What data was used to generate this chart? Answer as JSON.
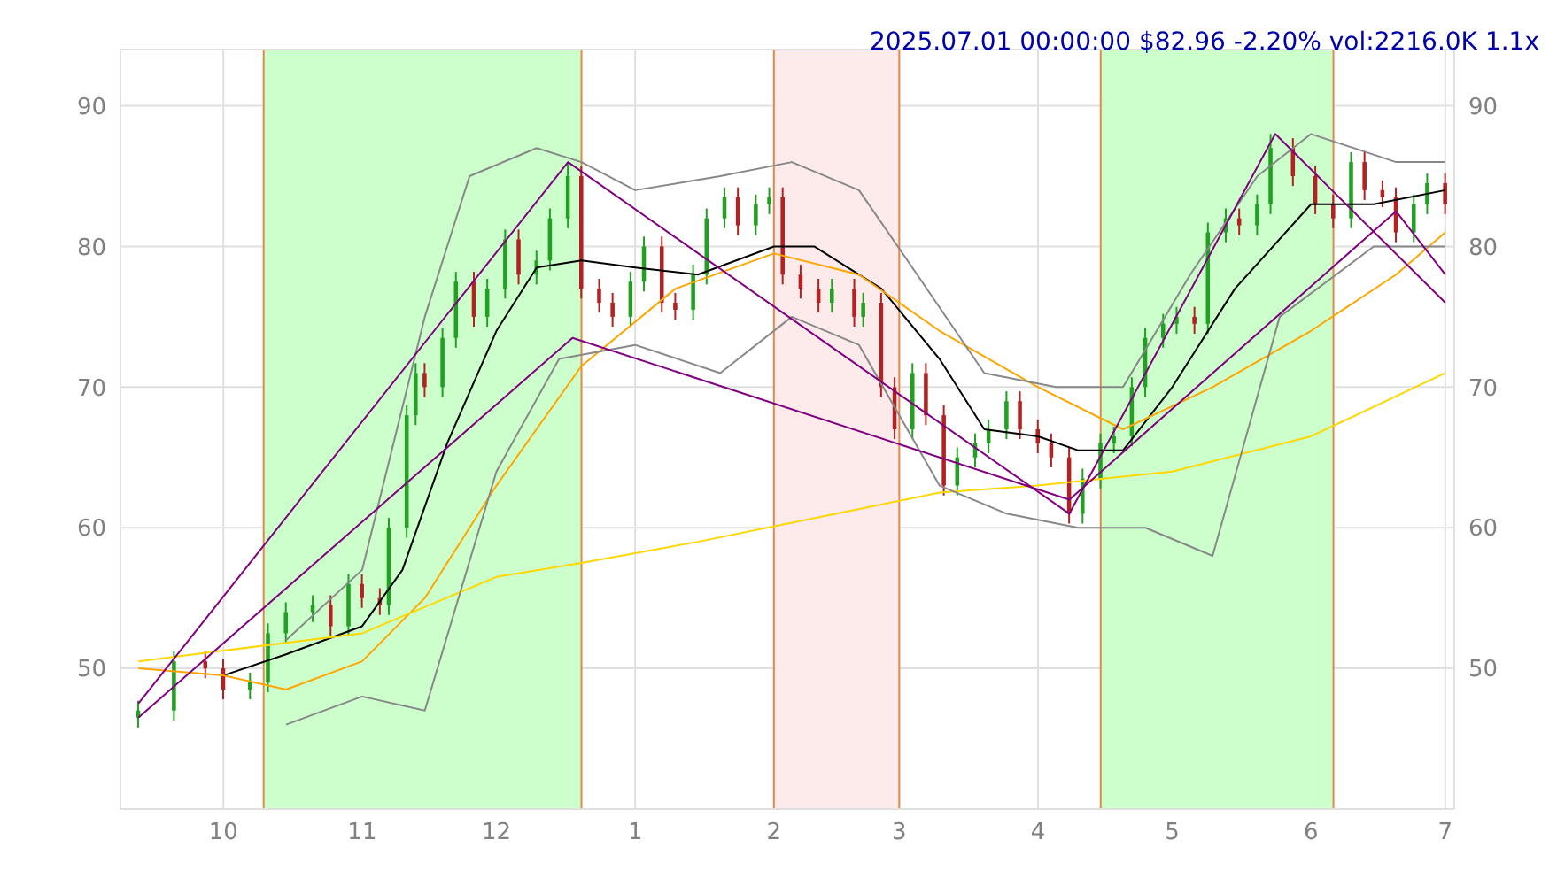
{
  "chart_data": {
    "type": "candlestick",
    "title": "2025.07.01 00:00:00 $82.96 -2.20% vol:2216.0K 1.1x",
    "x": [
      "2024-09-12",
      "2024-09-20",
      "2024-09-27",
      "2024-10-01",
      "2024-10-07",
      "2024-10-11",
      "2024-10-15",
      "2024-10-21",
      "2024-10-25",
      "2024-10-29",
      "2024-11-01",
      "2024-11-05",
      "2024-11-07",
      "2024-11-11",
      "2024-11-13",
      "2024-11-15",
      "2024-11-19",
      "2024-11-22",
      "2024-11-26",
      "2024-11-29",
      "2024-12-03",
      "2024-12-06",
      "2024-12-10",
      "2024-12-13",
      "2024-12-17",
      "2024-12-20",
      "2024-12-24",
      "2024-12-27",
      "2024-12-31",
      "2025-01-03",
      "2025-01-07",
      "2025-01-10",
      "2025-01-14",
      "2025-01-17",
      "2025-01-21",
      "2025-01-24",
      "2025-01-28",
      "2025-01-31",
      "2025-02-03",
      "2025-02-07",
      "2025-02-11",
      "2025-02-14",
      "2025-02-19",
      "2025-02-21",
      "2025-02-25",
      "2025-02-28",
      "2025-03-04",
      "2025-03-07",
      "2025-03-11",
      "2025-03-14",
      "2025-03-18",
      "2025-03-21",
      "2025-03-25",
      "2025-03-28",
      "2025-04-01",
      "2025-04-04",
      "2025-04-08",
      "2025-04-11",
      "2025-04-15",
      "2025-04-18",
      "2025-04-22",
      "2025-04-25",
      "2025-04-29",
      "2025-05-02",
      "2025-05-06",
      "2025-05-09",
      "2025-05-13",
      "2025-05-16",
      "2025-05-20",
      "2025-05-23",
      "2025-05-28",
      "2025-06-02",
      "2025-06-06",
      "2025-06-10",
      "2025-06-13",
      "2025-06-17",
      "2025-06-20",
      "2025-06-24",
      "2025-06-27",
      "2025-07-01"
    ],
    "ohlc": [
      [
        46.5,
        47.7,
        45.8,
        47
      ],
      [
        47,
        51.2,
        46.3,
        50.5
      ],
      [
        50.5,
        51.2,
        49.3,
        50
      ],
      [
        50,
        50.7,
        47.8,
        48.5
      ],
      [
        48.5,
        49.7,
        47.8,
        49
      ],
      [
        49,
        53.2,
        48.3,
        52.5
      ],
      [
        52.5,
        54.7,
        51.8,
        54
      ],
      [
        54,
        55.2,
        53.3,
        54.5
      ],
      [
        54.5,
        55.2,
        52.3,
        53
      ],
      [
        53,
        56.7,
        52.3,
        56
      ],
      [
        56,
        56.7,
        54.3,
        55
      ],
      [
        55,
        55.7,
        53.8,
        54.5
      ],
      [
        54.5,
        60.7,
        53.8,
        60
      ],
      [
        60,
        68.7,
        59.3,
        68
      ],
      [
        68,
        71.7,
        67.3,
        71
      ],
      [
        71,
        71.7,
        69.3,
        70
      ],
      [
        70,
        74.2,
        69.3,
        73.5
      ],
      [
        73.5,
        78.2,
        72.8,
        77.5
      ],
      [
        77.5,
        78.2,
        74.3,
        75
      ],
      [
        75,
        77.7,
        74.3,
        77
      ],
      [
        77,
        81.2,
        76.3,
        80.5
      ],
      [
        80.5,
        81.2,
        77.3,
        78
      ],
      [
        78,
        79.7,
        77.3,
        79
      ],
      [
        79,
        82.7,
        78.3,
        82
      ],
      [
        82,
        86,
        81.3,
        85
      ],
      [
        85,
        85.7,
        76.3,
        77
      ],
      [
        77,
        77.7,
        75.3,
        76
      ],
      [
        76,
        76.7,
        74.3,
        75
      ],
      [
        75,
        78.2,
        74.3,
        77.5
      ],
      [
        77.5,
        80.7,
        76.8,
        80
      ],
      [
        80,
        80.7,
        75.3,
        76
      ],
      [
        76,
        76.7,
        74.8,
        75.5
      ],
      [
        75.5,
        78.7,
        74.8,
        78
      ],
      [
        78,
        82.7,
        77.3,
        82
      ],
      [
        82,
        84.2,
        81.3,
        83.5
      ],
      [
        83.5,
        84.2,
        80.8,
        81.5
      ],
      [
        81.5,
        83.7,
        80.8,
        83
      ],
      [
        83,
        84.2,
        82.3,
        83.5
      ],
      [
        83.5,
        84.2,
        77.3,
        78
      ],
      [
        78,
        78.7,
        76.3,
        77
      ],
      [
        77,
        77.7,
        75.3,
        76
      ],
      [
        76,
        77.7,
        75.3,
        77
      ],
      [
        77,
        77.7,
        74.3,
        75
      ],
      [
        75,
        76.7,
        74.3,
        76
      ],
      [
        76,
        76.7,
        69.3,
        70
      ],
      [
        70,
        70.7,
        66.3,
        67
      ],
      [
        67,
        71.7,
        66.3,
        71
      ],
      [
        71,
        71.7,
        67.3,
        68
      ],
      [
        68,
        68.7,
        62.3,
        63
      ],
      [
        63,
        65.7,
        62.3,
        65
      ],
      [
        65,
        66.7,
        64.3,
        66
      ],
      [
        66,
        67.7,
        65.3,
        67
      ],
      [
        67,
        69.7,
        66.3,
        69
      ],
      [
        69,
        69.7,
        66.3,
        67
      ],
      [
        67,
        67.7,
        65.3,
        66
      ],
      [
        66,
        66.7,
        64.3,
        65
      ],
      [
        65,
        65.7,
        60.3,
        61
      ],
      [
        61,
        64.2,
        60.3,
        63.5
      ],
      [
        63.5,
        66.7,
        62.8,
        66
      ],
      [
        66,
        67.2,
        65.3,
        66.5
      ],
      [
        66.5,
        70.7,
        65.8,
        70
      ],
      [
        70,
        74.2,
        69.3,
        73.5
      ],
      [
        73.5,
        75.2,
        72.8,
        74.5
      ],
      [
        74.5,
        75.7,
        73.8,
        75
      ],
      [
        75,
        75.7,
        73.8,
        74.5
      ],
      [
        74.5,
        81.7,
        73.8,
        81
      ],
      [
        81,
        82.7,
        80.3,
        82
      ],
      [
        82,
        82.7,
        80.8,
        81.5
      ],
      [
        81.5,
        83.7,
        80.8,
        83
      ],
      [
        83,
        88,
        82.3,
        87
      ],
      [
        87,
        87.7,
        84.3,
        85
      ],
      [
        85,
        85.7,
        82.3,
        83
      ],
      [
        83,
        83.7,
        81.3,
        82
      ],
      [
        82,
        86.7,
        81.3,
        86
      ],
      [
        86,
        86.7,
        83.3,
        84
      ],
      [
        84,
        84.7,
        82.8,
        83.5
      ],
      [
        83.5,
        84.2,
        80.3,
        81
      ],
      [
        81,
        83.7,
        80.3,
        83
      ],
      [
        83,
        85.2,
        82.3,
        84.5
      ],
      [
        84.5,
        85.2,
        82.3,
        83
      ]
    ],
    "series": [
      {
        "type": "line",
        "color": "#000000",
        "x": [
          "2024-10-01",
          "2024-10-15",
          "2024-11-01",
          "2024-11-10",
          "2024-11-20",
          "2024-12-01",
          "2024-12-10",
          "2024-12-20",
          "2025-01-01",
          "2025-01-15",
          "2025-02-01",
          "2025-02-10",
          "2025-02-25",
          "2025-03-10",
          "2025-03-20",
          "2025-04-01",
          "2025-04-10",
          "2025-04-20",
          "2025-05-01",
          "2025-05-15",
          "2025-06-01",
          "2025-06-15",
          "2025-07-01"
        ],
        "values": [
          49.5,
          51,
          53,
          57,
          66,
          74,
          78.5,
          79,
          78.5,
          78,
          80,
          80,
          77,
          72,
          67,
          66.5,
          65.5,
          65.5,
          70,
          77,
          83,
          83,
          84
        ]
      },
      {
        "type": "line",
        "color": "#ffa500",
        "x": [
          "2024-09-12",
          "2024-10-01",
          "2024-10-15",
          "2024-11-01",
          "2024-11-15",
          "2024-12-01",
          "2024-12-20",
          "2025-01-10",
          "2025-02-01",
          "2025-02-20",
          "2025-03-10",
          "2025-04-01",
          "2025-04-20",
          "2025-05-10",
          "2025-06-01",
          "2025-06-20",
          "2025-07-01"
        ],
        "values": [
          50,
          49.5,
          48.5,
          50.5,
          55,
          63,
          71.5,
          77,
          79.5,
          78,
          74,
          70,
          67,
          70,
          74,
          78,
          81
        ]
      },
      {
        "type": "line",
        "color": "#ffd700",
        "x": [
          "2024-09-12",
          "2024-11-01",
          "2024-12-01",
          "2024-12-20",
          "2025-01-15",
          "2025-02-15",
          "2025-03-10",
          "2025-04-01",
          "2025-05-01",
          "2025-06-01",
          "2025-07-01"
        ],
        "values": [
          50.5,
          52.5,
          56.5,
          57.5,
          59,
          61,
          62.5,
          63,
          64,
          66.5,
          71
        ]
      },
      {
        "type": "line",
        "color": "#888888",
        "x": [
          "2024-10-15",
          "2024-11-01",
          "2024-11-15",
          "2024-11-25",
          "2024-12-10",
          "2024-12-20",
          "2025-01-01",
          "2025-01-20",
          "2025-02-05",
          "2025-02-20",
          "2025-03-05",
          "2025-03-20",
          "2025-04-05",
          "2025-04-20",
          "2025-05-05",
          "2025-05-20",
          "2025-06-01",
          "2025-06-20",
          "2025-07-01"
        ],
        "values": [
          52,
          57,
          75,
          85,
          87,
          86,
          84,
          85,
          86,
          84,
          78,
          71,
          70,
          70,
          78,
          85,
          88,
          86,
          86
        ]
      },
      {
        "type": "line",
        "color": "#888888",
        "x": [
          "2024-10-15",
          "2024-11-01",
          "2024-11-15",
          "2024-12-01",
          "2024-12-15",
          "2025-01-01",
          "2025-01-20",
          "2025-02-05",
          "2025-02-20",
          "2025-03-10",
          "2025-03-25",
          "2025-04-10",
          "2025-04-25",
          "2025-05-10",
          "2025-05-25",
          "2025-06-15",
          "2025-07-01"
        ],
        "values": [
          46,
          48,
          47,
          64,
          72,
          73,
          71,
          75,
          73,
          63,
          61,
          60,
          60,
          58,
          75,
          80,
          80
        ]
      },
      {
        "type": "line",
        "color": "#800080",
        "x": [
          "2024-09-12",
          "2024-12-17",
          "2025-04-08",
          "2025-05-24",
          "2025-07-01"
        ],
        "values": [
          47.5,
          86,
          61,
          88,
          76
        ]
      },
      {
        "type": "line",
        "color": "#800080",
        "x": [
          "2024-09-12",
          "2024-12-18",
          "2025-04-08",
          "2025-06-20",
          "2025-07-01"
        ],
        "values": [
          46.5,
          73.5,
          62,
          82.5,
          78
        ]
      }
    ],
    "bands": [
      {
        "axis": "x",
        "from": "2024-10-10",
        "to": "2024-12-20",
        "color": "#ccffcc"
      },
      {
        "axis": "x",
        "from": "2025-02-01",
        "to": "2025-03-01",
        "color": "#fdeaea"
      },
      {
        "axis": "x",
        "from": "2025-04-15",
        "to": "2025-06-06",
        "color": "#ccffcc"
      }
    ],
    "xlim": [
      "2024-09-08",
      "2025-07-03"
    ],
    "xticks": [
      {
        "value": "2024-10-01",
        "label": "10"
      },
      {
        "value": "2024-11-01",
        "label": "11"
      },
      {
        "value": "2024-12-01",
        "label": "12"
      },
      {
        "value": "2025-01-01",
        "label": "1"
      },
      {
        "value": "2025-02-01",
        "label": "2"
      },
      {
        "value": "2025-03-01",
        "label": "3"
      },
      {
        "value": "2025-04-01",
        "label": "4"
      },
      {
        "value": "2025-05-01",
        "label": "5"
      },
      {
        "value": "2025-06-01",
        "label": "6"
      },
      {
        "value": "2025-07-01",
        "label": "7"
      }
    ],
    "ylim": [
      40,
      94
    ],
    "yticks": [
      50,
      60,
      70,
      80,
      90
    ],
    "y2lim": [
      40,
      94
    ],
    "y2ticks": [
      50,
      60,
      70,
      80,
      90
    ],
    "grid": true
  }
}
